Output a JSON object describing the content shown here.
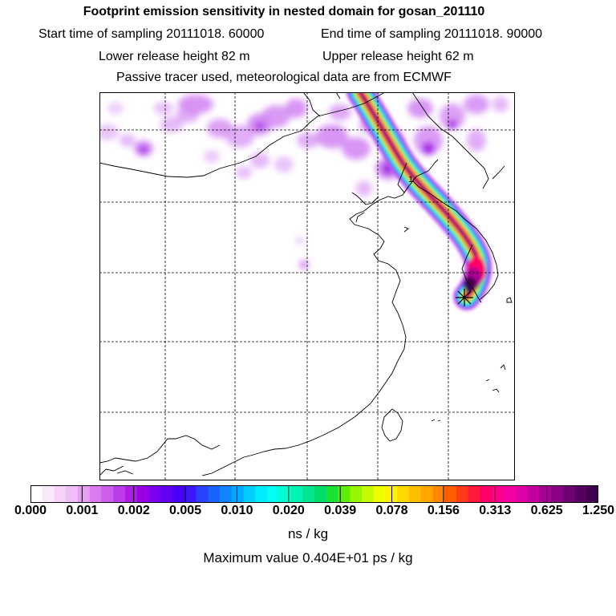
{
  "header": {
    "title": "Footprint emission sensitivity in nested domain for gosan_201110",
    "start_time": "Start time of sampling 20111018. 60000",
    "end_time": "End time of sampling 20111018. 90000",
    "lower_release": "Lower release height   82 m",
    "upper_release": "Upper release height   62 m",
    "tracer_info": "Passive tracer used, meteorological data are from ECMWF"
  },
  "colorbar": {
    "ticks": [
      "0.000",
      "0.001",
      "0.002",
      "0.005",
      "0.010",
      "0.020",
      "0.039",
      "0.078",
      "0.156",
      "0.313",
      "0.625",
      "1.250"
    ],
    "colors": [
      "#ffffff",
      "#fbe8fb",
      "#f6d2f8",
      "#f0bdf6",
      "#e99ef3",
      "#dc7bf0",
      "#cc5ded",
      "#bd3ce9",
      "#ab1ee6",
      "#9a00e5",
      "#7d00ee",
      "#6300f3",
      "#4a00f8",
      "#3c17fc",
      "#2842ff",
      "#1a63ff",
      "#0f86ff",
      "#00a9ff",
      "#00cdff",
      "#00edff",
      "#00ffee",
      "#00ffd0",
      "#00f4b1",
      "#00e690",
      "#00dc6a",
      "#19e234",
      "#5ced08",
      "#96f500",
      "#c4fb00",
      "#f2ff00",
      "#fff100",
      "#ffd900",
      "#ffbf00",
      "#ffa600",
      "#ff8600",
      "#ff5e00",
      "#ff3a18",
      "#ff1a3a",
      "#ff0068",
      "#ff008d",
      "#f700a2",
      "#e000a7",
      "#c5009e",
      "#a80092",
      "#8b0083",
      "#6e0072",
      "#560062",
      "#3f0050"
    ],
    "units": "ns / kg",
    "max_value": "Maximum value  0.404E+01 ps / kg"
  },
  "map": {
    "receptor_marker": "star",
    "plume_colors": [
      "#cc5ded",
      "#2842ff",
      "#00ffee",
      "#5ced08",
      "#fff100",
      "#ff5e00",
      "#ff0068",
      "#a80092",
      "#3f0050"
    ],
    "haze_color": "#d48af3"
  }
}
